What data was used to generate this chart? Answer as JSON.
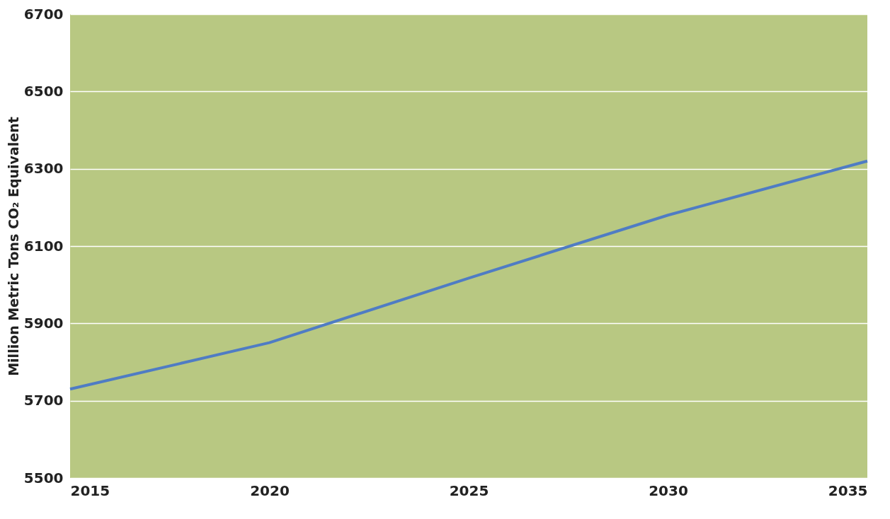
{
  "chart_data": {
    "type": "line",
    "ylabel": "Million Metric Tons CO₂ Equivalent",
    "x": [
      2015,
      2020,
      2025,
      2030,
      2035
    ],
    "series": [
      {
        "color": "#4f7cc4",
        "values": [
          5730,
          5850,
          6017,
          6180,
          6320
        ]
      }
    ],
    "xlim": [
      2015,
      2035
    ],
    "xticks": [
      2015,
      2020,
      2025,
      2030,
      2035
    ],
    "ylim": [
      5500,
      6700
    ],
    "yticks": [
      5500,
      5700,
      5900,
      6100,
      6300,
      6500,
      6700
    ],
    "grid": "y",
    "marker": "none",
    "line_style": "solid"
  }
}
